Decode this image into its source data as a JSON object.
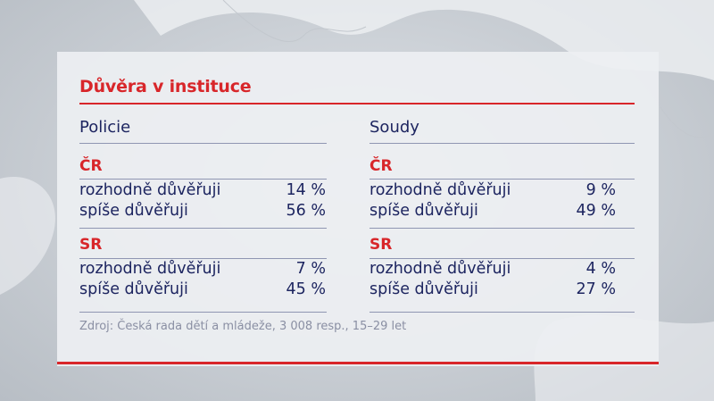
{
  "title": "Důvěra v instituce",
  "accent_color": "#d8262a",
  "text_color": "#1d2560",
  "columns": [
    {
      "heading": "Policie",
      "groups": [
        {
          "country": "ČR",
          "rows": [
            {
              "label": "rozhodně důvěřuji",
              "value": "14 %"
            },
            {
              "label": "spíše důvěřuji",
              "value": "56 %"
            }
          ]
        },
        {
          "country": "SR",
          "rows": [
            {
              "label": "rozhodně důvěřuji",
              "value": "7 %"
            },
            {
              "label": "spíše důvěřuji",
              "value": "45 %"
            }
          ]
        }
      ]
    },
    {
      "heading": "Soudy",
      "groups": [
        {
          "country": "ČR",
          "rows": [
            {
              "label": "rozhodně důvěřuji",
              "value": "9 %"
            },
            {
              "label": "spíše důvěřuji",
              "value": "49 %"
            }
          ]
        },
        {
          "country": "SR",
          "rows": [
            {
              "label": "rozhodně důvěřuji",
              "value": "4 %"
            },
            {
              "label": "spíše důvěřuji",
              "value": "27 %"
            }
          ]
        }
      ]
    }
  ],
  "source": "Zdroj: Česká rada dětí a mládeže, 3 008 resp., 15–29 let"
}
